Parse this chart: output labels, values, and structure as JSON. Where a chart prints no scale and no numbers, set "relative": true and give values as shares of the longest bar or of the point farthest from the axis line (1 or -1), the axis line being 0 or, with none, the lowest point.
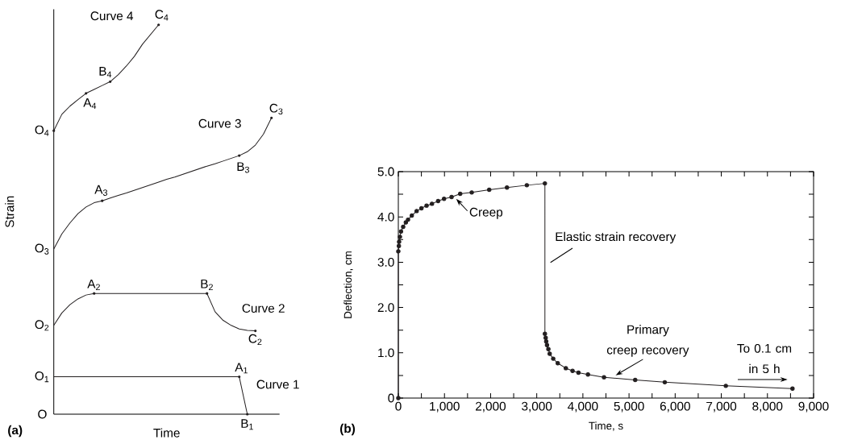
{
  "chart_data": [
    {
      "type": "line",
      "relative": true,
      "xlabel": "Time",
      "ylabel": "Strain",
      "categories": [
        null,
        null,
        null,
        null,
        null,
        null,
        null,
        null,
        null,
        null,
        null,
        null,
        null,
        null,
        null,
        null,
        null,
        null,
        null,
        null,
        null,
        null,
        null,
        null,
        null,
        null,
        null,
        null,
        null
      ],
      "series": [
        {
          "name": "Curve 1",
          "color": "#231f20",
          "values": [
            0.096,
            0.096,
            0.096,
            0.096,
            0.096,
            0.096,
            0.096,
            0.096,
            0.096,
            0.096,
            0.096,
            0.096,
            0.096,
            0.096,
            0.096,
            0.096,
            0.096,
            0.096,
            0.096,
            0.096,
            0.096,
            0.096,
            0.096,
            0.096,
            0,
            null,
            null,
            null,
            null
          ]
        },
        {
          "name": "Curve 2",
          "color": "#231f20",
          "values": [
            0.228,
            0.26,
            0.281,
            0.296,
            0.306,
            0.31,
            0.31,
            0.31,
            0.31,
            0.31,
            0.31,
            0.31,
            0.31,
            0.31,
            0.31,
            0.31,
            0.31,
            0.31,
            0.31,
            0.31,
            0.263,
            0.241,
            0.228,
            0.219,
            0.215,
            0.214,
            null,
            null,
            null
          ]
        },
        {
          "name": "Curve 3",
          "color": "#231f20",
          "values": [
            0.424,
            0.463,
            0.491,
            0.515,
            0.532,
            0.543,
            0.548,
            0.555,
            0.562,
            0.568,
            0.575,
            0.582,
            0.589,
            0.596,
            0.603,
            0.609,
            0.616,
            0.623,
            0.63,
            0.637,
            0.643,
            0.65,
            0.657,
            0.664,
            0.674,
            0.691,
            0.719,
            0.761,
            null
          ]
        },
        {
          "name": "Curve 4",
          "color": "#231f20",
          "values": [
            0.728,
            0.77,
            0.791,
            0.808,
            0.824,
            0.834,
            0.844,
            0.854,
            0.872,
            0.894,
            0.919,
            0.95,
            0.975,
            1,
            null,
            null,
            null,
            null,
            null,
            null,
            null,
            null,
            null,
            null,
            null,
            null,
            null,
            null,
            null
          ]
        }
      ],
      "annotations": [
        "O",
        "O$_{1}$",
        "A$_{1}$",
        "B$_{1}$",
        "O$_{2}$",
        "A$_{2}$",
        "B$_{2}$",
        "C$_{2}$",
        "O$_{3}$",
        "A$_{3}$",
        "B$_{3}$",
        "C$_{3}$",
        "O$_{4}$",
        "A$_{4}$",
        "B$_{4}$",
        "C$_{4}$",
        "(a)"
      ]
    },
    {
      "type": "line",
      "xlabel": "Time, s",
      "ylabel": "Deflection, cm",
      "color": "#231f20",
      "marker": "circle",
      "x": [
        0,
        0,
        12,
        17,
        35,
        58,
        105,
        163,
        210,
        292,
        397,
        501,
        612,
        729,
        862,
        991,
        1154,
        1341,
        1591,
        1970,
        2355,
        2785,
        3177,
        3177,
        3194,
        3205,
        3222,
        3252,
        3281,
        3357,
        3456,
        3631,
        3776,
        3904,
        4110,
        4458,
        5134,
        5775,
        7098,
        8543
      ],
      "values": [
        0,
        3.24,
        3.36,
        3.45,
        3.56,
        3.68,
        3.78,
        3.88,
        3.94,
        4.03,
        4.13,
        4.19,
        4.25,
        4.29,
        4.35,
        4.4,
        4.44,
        4.51,
        4.54,
        4.6,
        4.65,
        4.7,
        4.74,
        1.42,
        1.33,
        1.25,
        1.17,
        1.08,
        0.98,
        0.87,
        0.77,
        0.66,
        0.6,
        0.56,
        0.52,
        0.46,
        0.4,
        0.35,
        0.27,
        0.21
      ],
      "xlim": [
        0,
        9000
      ],
      "ylim": [
        0,
        5
      ],
      "xticks": [
        0,
        {
          "value": 500,
          "label": null
        },
        {
          "value": 1000,
          "label": "1,000"
        },
        {
          "value": 1500,
          "label": null
        },
        {
          "value": 2000,
          "label": "2,000"
        },
        {
          "value": 2500,
          "label": null
        },
        {
          "value": 3000,
          "label": "3,000"
        },
        {
          "value": 3500,
          "label": null
        },
        {
          "value": 4000,
          "label": "4,000"
        },
        {
          "value": 4500,
          "label": null
        },
        {
          "value": 5000,
          "label": "5,000"
        },
        {
          "value": 5500,
          "label": null
        },
        {
          "value": 6000,
          "label": "6,000"
        },
        {
          "value": 6500,
          "label": null
        },
        {
          "value": 7000,
          "label": "7,000"
        },
        {
          "value": 7500,
          "label": null
        },
        {
          "value": 8000,
          "label": "8,000"
        },
        {
          "value": 8500,
          "label": null
        },
        {
          "value": 9000,
          "label": "9,000"
        }
      ],
      "yticks": [
        0,
        {
          "value": 0.5,
          "label": null
        },
        {
          "value": 1,
          "label": "1.0"
        },
        {
          "value": 1.5,
          "label": null
        },
        {
          "value": 2,
          "label": "2.0"
        },
        {
          "value": 2.5,
          "label": null
        },
        {
          "value": 3,
          "label": "3.0"
        },
        {
          "value": 3.5,
          "label": null
        },
        {
          "value": 4,
          "label": "4.0"
        },
        {
          "value": 4.5,
          "label": null
        },
        {
          "value": 5,
          "label": "5.0"
        }
      ],
      "annotations": [
        {
          "text": "Creep",
          "x": 1253,
          "y": 4.4
        },
        "Elastic strain recovery",
        {
          "text": "Primary creep recovery",
          "x": 4708,
          "y": 0.5
        },
        "To 0.1 cm in 5 h",
        "(b)"
      ]
    }
  ]
}
